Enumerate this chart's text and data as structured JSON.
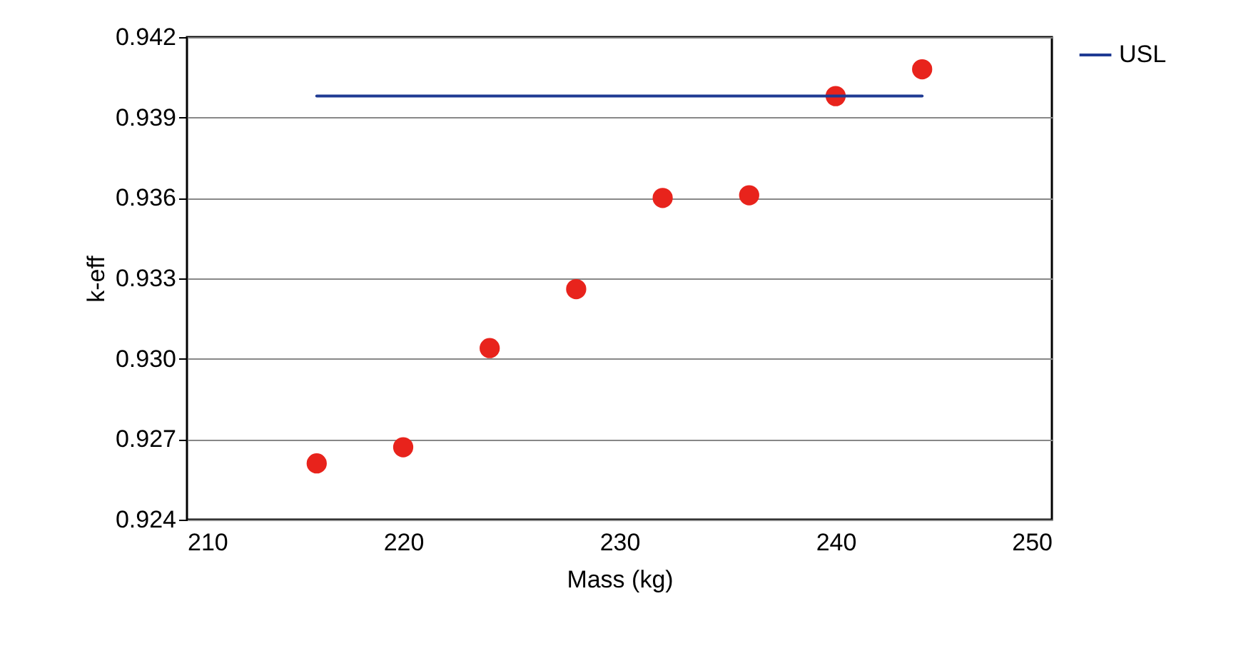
{
  "chart_data": {
    "type": "scatter",
    "xlabel": "Mass (kg)",
    "ylabel": "k-eff",
    "x": [
      216,
      220,
      224,
      228,
      232,
      236,
      240,
      244
    ],
    "series": [
      {
        "color": "#e8231c",
        "marker": "circle",
        "values": [
          0.9261,
          0.9267,
          0.9304,
          0.9326,
          0.936,
          0.9361,
          0.9398,
          0.9408
        ]
      },
      {
        "type": "line",
        "name": "USL",
        "color": "#1f3a93",
        "x": [
          216,
          244
        ],
        "values": [
          0.9398,
          0.9398
        ]
      }
    ],
    "xlim": [
      210,
      250
    ],
    "xticks": [
      210,
      220,
      230,
      240,
      250
    ],
    "ylim": [
      0.924,
      0.942
    ],
    "yticks": [
      0.924,
      0.927,
      {
        "value": 0.93,
        "label": "0.930"
      },
      0.933,
      0.936,
      0.939,
      0.942
    ],
    "grid": "y",
    "legend": "right"
  }
}
